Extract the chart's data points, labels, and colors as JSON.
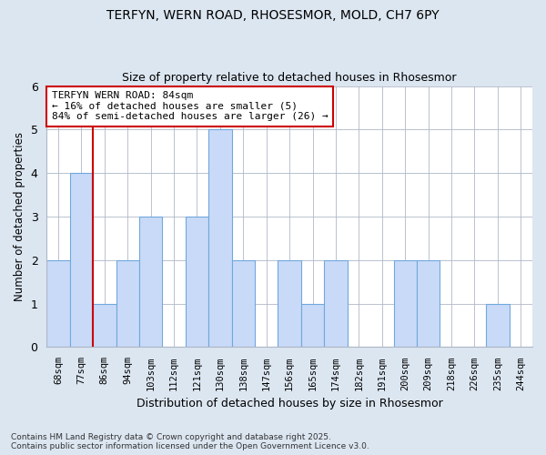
{
  "title": "TERFYN, WERN ROAD, RHOSESMOR, MOLD, CH7 6PY",
  "subtitle": "Size of property relative to detached houses in Rhosesmor",
  "xlabel": "Distribution of detached houses by size in Rhosesmor",
  "ylabel": "Number of detached properties",
  "footer_line1": "Contains HM Land Registry data © Crown copyright and database right 2025.",
  "footer_line2": "Contains public sector information licensed under the Open Government Licence v3.0.",
  "categories": [
    "68sqm",
    "77sqm",
    "86sqm",
    "94sqm",
    "103sqm",
    "112sqm",
    "121sqm",
    "130sqm",
    "138sqm",
    "147sqm",
    "156sqm",
    "165sqm",
    "174sqm",
    "182sqm",
    "191sqm",
    "200sqm",
    "209sqm",
    "218sqm",
    "226sqm",
    "235sqm",
    "244sqm"
  ],
  "values": [
    2,
    4,
    1,
    2,
    3,
    0,
    3,
    5,
    2,
    0,
    2,
    1,
    2,
    0,
    0,
    2,
    2,
    0,
    0,
    1,
    0
  ],
  "bar_color": "#c9daf8",
  "bar_edge_color": "#6fa8dc",
  "bar_edge_width": 0.8,
  "grid_color": "#b0b8c8",
  "plot_bg_color": "#ffffff",
  "fig_bg_color": "#dce6f1",
  "annotation_text": "TERFYN WERN ROAD: 84sqm\n← 16% of detached houses are smaller (5)\n84% of semi-detached houses are larger (26) →",
  "annotation_box_color": "#ffffff",
  "annotation_box_edge": "#cc0000",
  "vline_x": 2.0,
  "vline_color": "#cc0000",
  "ylim": [
    0,
    6
  ],
  "yticks": [
    0,
    1,
    2,
    3,
    4,
    5,
    6
  ]
}
